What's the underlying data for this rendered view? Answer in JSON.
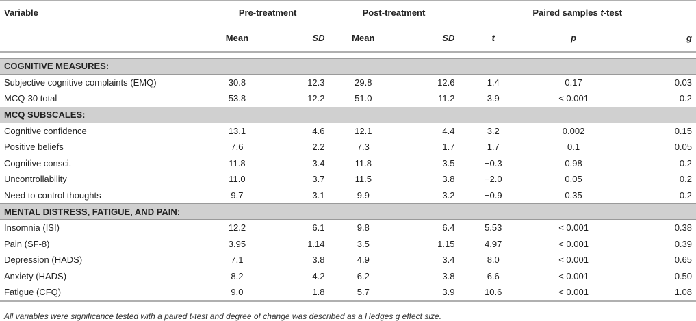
{
  "header": {
    "variable": "Variable",
    "pre": "Pre-treatment",
    "post": "Post-treatment",
    "paired_prefix": "Paired samples ",
    "paired_t": "t",
    "paired_suffix": "-test",
    "mean": "Mean",
    "sd": "SD",
    "t": "t",
    "p": "p",
    "g": "g"
  },
  "sections": [
    {
      "title": "COGNITIVE MEASURES:",
      "rows": [
        {
          "label": "Subjective cognitive complaints (EMQ)",
          "pre_mean": "30.8",
          "pre_sd": "12.3",
          "post_mean": "29.8",
          "post_sd": "12.6",
          "t": "1.4",
          "p": "0.17",
          "g": "0.03"
        },
        {
          "label": "MCQ-30 total",
          "pre_mean": "53.8",
          "pre_sd": "12.2",
          "post_mean": "51.0",
          "post_sd": "11.2",
          "t": "3.9",
          "p": "< 0.001",
          "g": "0.2"
        }
      ]
    },
    {
      "title": "MCQ SUBSCALES:",
      "rows": [
        {
          "label": "Cognitive confidence",
          "pre_mean": "13.1",
          "pre_sd": "4.6",
          "post_mean": "12.1",
          "post_sd": "4.4",
          "t": "3.2",
          "p": "0.002",
          "g": "0.15"
        },
        {
          "label": "Positive beliefs",
          "pre_mean": "7.6",
          "pre_sd": "2.2",
          "post_mean": "7.3",
          "post_sd": "1.7",
          "t": "1.7",
          "p": "0.1",
          "g": "0.05"
        },
        {
          "label": "Cognitive consci.",
          "pre_mean": "11.8",
          "pre_sd": "3.4",
          "post_mean": "11.8",
          "post_sd": "3.5",
          "t": "−0.3",
          "p": "0.98",
          "g": "0.2"
        },
        {
          "label": "Uncontrollability",
          "pre_mean": "11.0",
          "pre_sd": "3.7",
          "post_mean": "11.5",
          "post_sd": "3.8",
          "t": "−2.0",
          "p": "0.05",
          "g": "0.2"
        },
        {
          "label": "Need to control thoughts",
          "pre_mean": "9.7",
          "pre_sd": "3.1",
          "post_mean": "9.9",
          "post_sd": "3.2",
          "t": "−0.9",
          "p": "0.35",
          "g": "0.2"
        }
      ]
    },
    {
      "title": "MENTAL DISTRESS, FATIGUE, AND PAIN:",
      "rows": [
        {
          "label": "Insomnia (ISI)",
          "pre_mean": "12.2",
          "pre_sd": "6.1",
          "post_mean": "9.8",
          "post_sd": "6.4",
          "t": "5.53",
          "p": "< 0.001",
          "g": "0.38"
        },
        {
          "label": "Pain (SF-8)",
          "pre_mean": "3.95",
          "pre_sd": "1.14",
          "post_mean": "3.5",
          "post_sd": "1.15",
          "t": "4.97",
          "p": "< 0.001",
          "g": "0.39"
        },
        {
          "label": "Depression (HADS)",
          "pre_mean": "7.1",
          "pre_sd": "3.8",
          "post_mean": "4.9",
          "post_sd": "3.4",
          "t": "8.0",
          "p": "< 0.001",
          "g": "0.65"
        },
        {
          "label": "Anxiety (HADS)",
          "pre_mean": "8.2",
          "pre_sd": "4.2",
          "post_mean": "6.2",
          "post_sd": "3.8",
          "t": "6.6",
          "p": "< 0.001",
          "g": "0.50"
        },
        {
          "label": "Fatigue (CFQ)",
          "pre_mean": "9.0",
          "pre_sd": "1.8",
          "post_mean": "5.7",
          "post_sd": "3.9",
          "t": "10.6",
          "p": "< 0.001",
          "g": "1.08"
        }
      ]
    }
  ],
  "footnote": "All variables were significance tested with a paired t-test and degree of change was described as a Hedges g effect size."
}
